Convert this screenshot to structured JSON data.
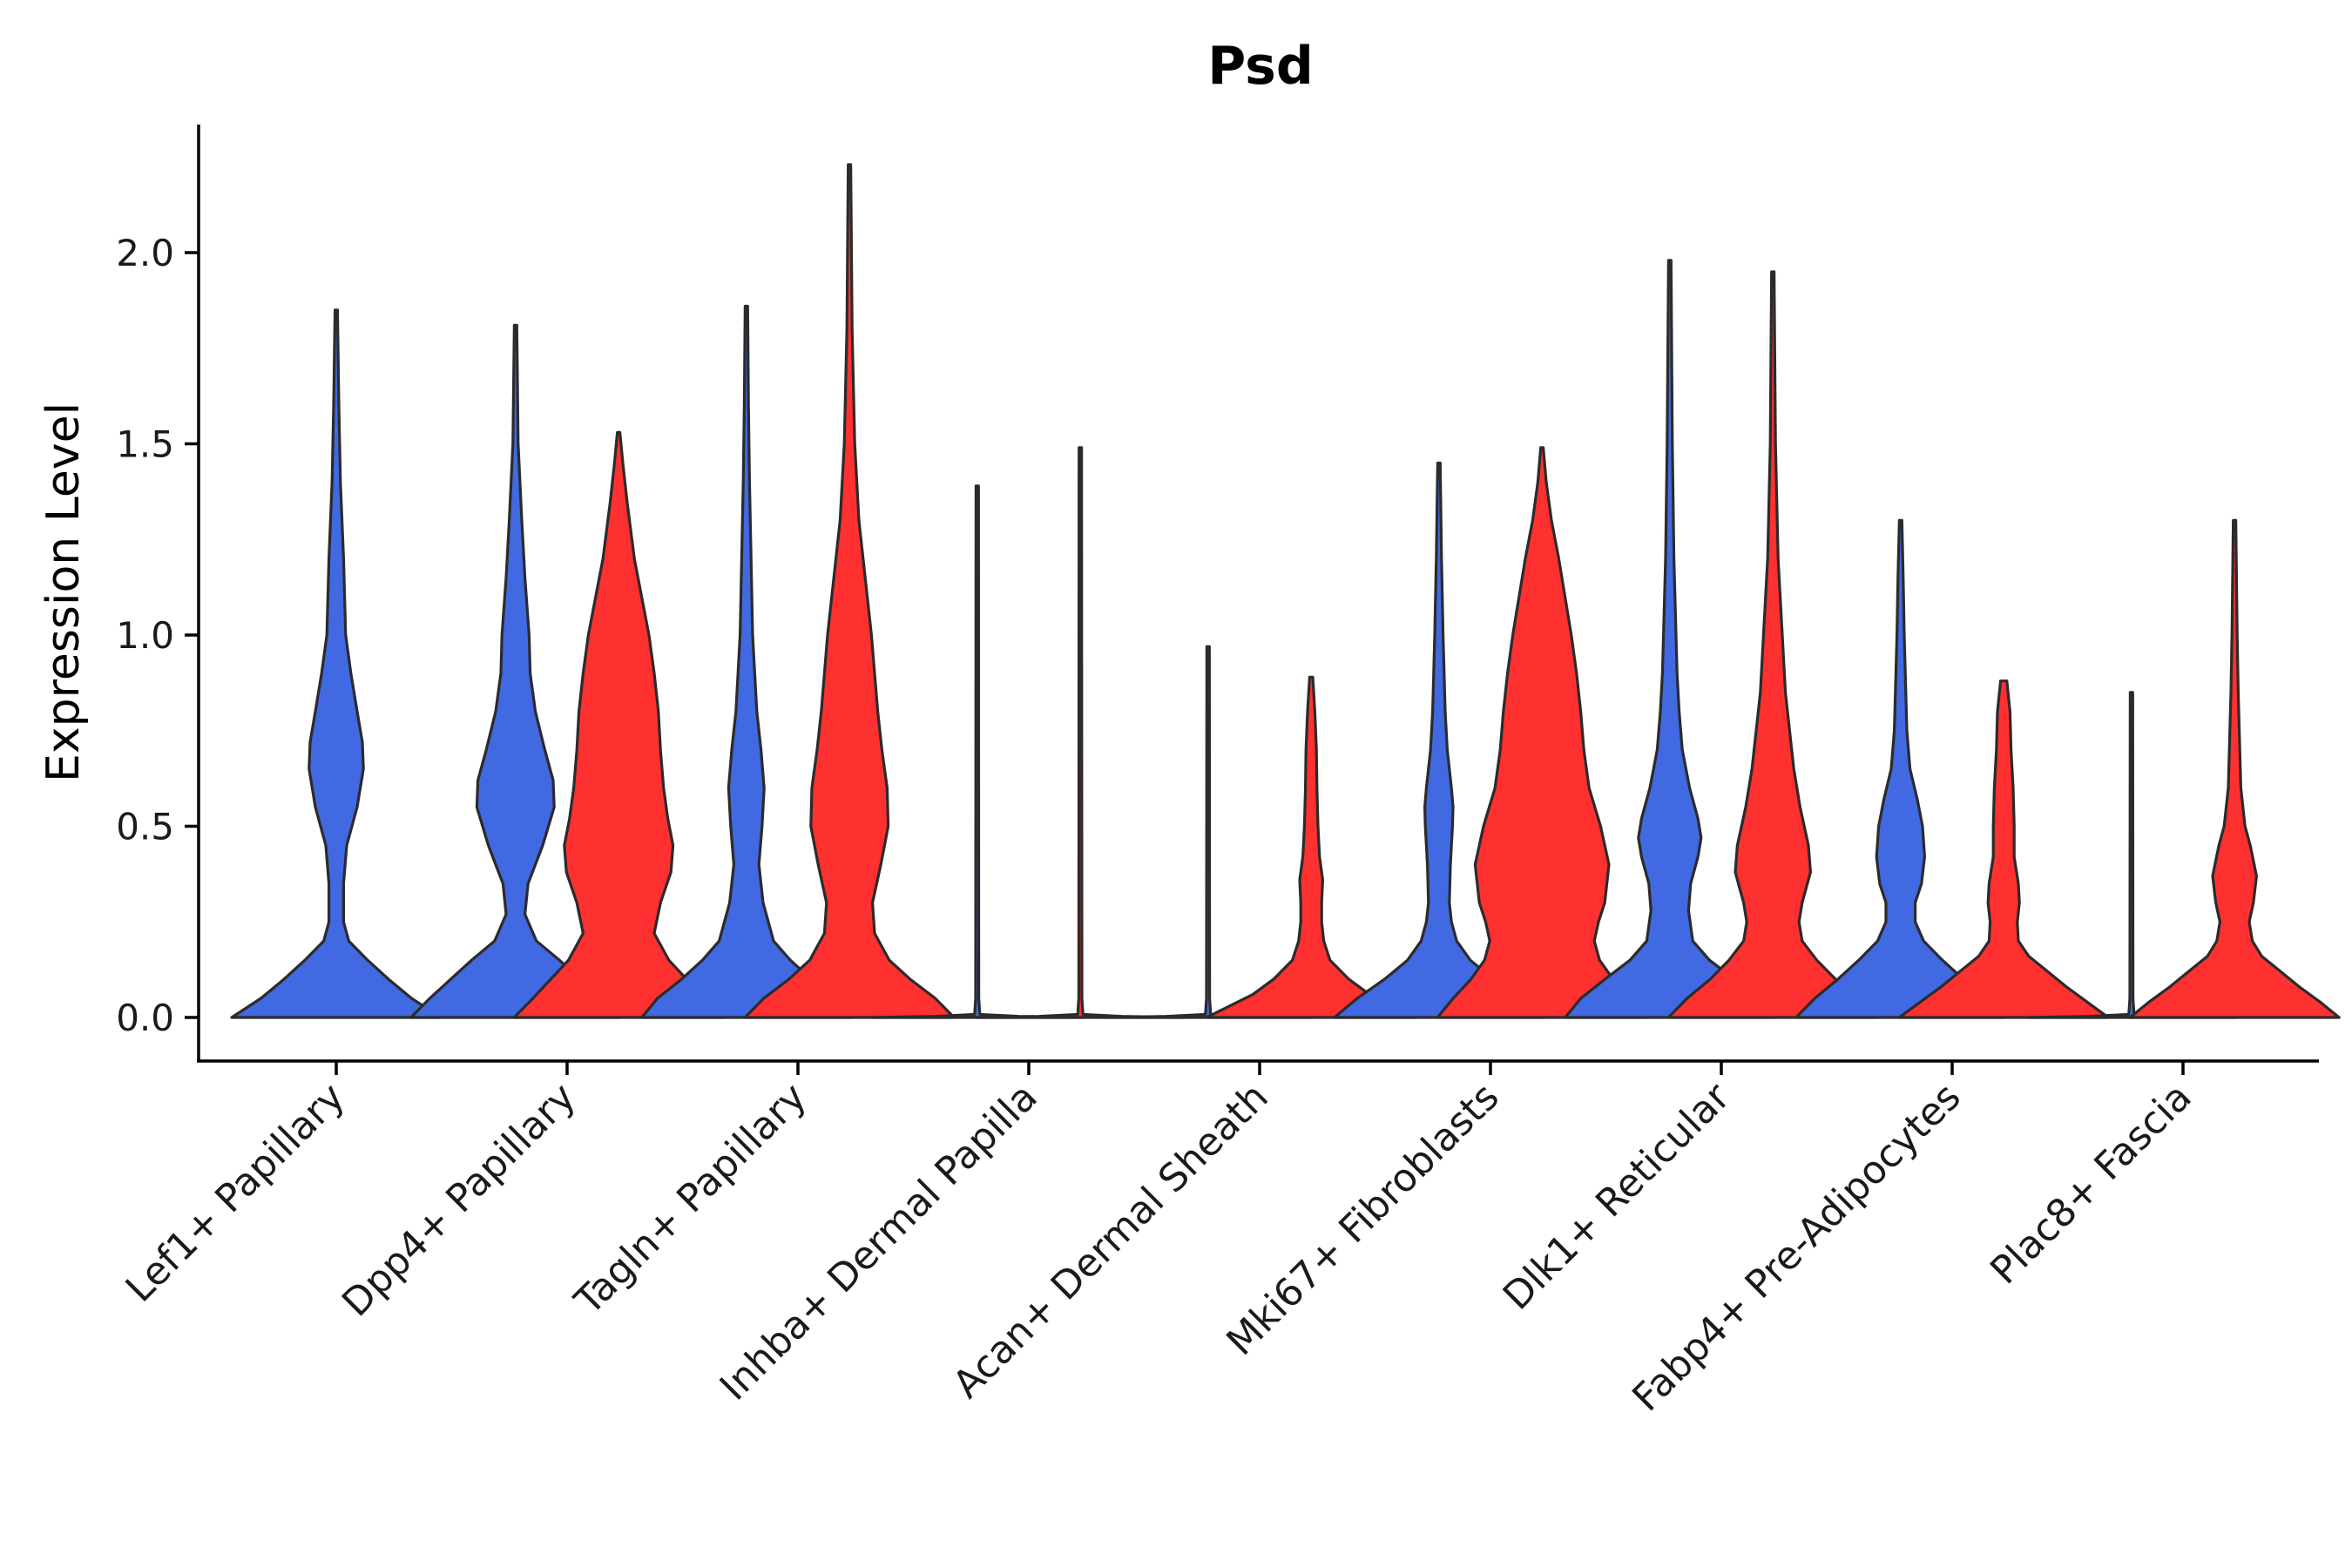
{
  "chart_data": {
    "type": "violin",
    "title": "Psd",
    "xlabel": "",
    "ylabel": "Expression Level",
    "ylim": [
      -0.11,
      2.33
    ],
    "yticks": [
      0.0,
      0.5,
      1.0,
      1.5,
      2.0
    ],
    "ytick_labels": [
      "0.0",
      "0.5",
      "1.0",
      "1.5",
      "2.0"
    ],
    "grid": false,
    "legend": "none",
    "colors": {
      "blue": "#4169E1",
      "red": "#FF3030"
    },
    "categories": [
      "Lef1+ Papillary",
      "Dpp4+ Papillary",
      "Tagln+ Papillary",
      "Inhba+ Dermal Papilla",
      "Acan+ Dermal Sheath",
      "Mki67+ Fibroblasts",
      "Dlk1+ Reticular",
      "Fabp4+ Pre-Adipocytes",
      "Plac8+ Fascia"
    ],
    "violins": [
      {
        "category": "Lef1+ Papillary",
        "offset": 0,
        "color": "blue",
        "max": 1.85,
        "profile": [
          [
            0.0,
            1.0
          ],
          [
            0.05,
            0.72
          ],
          [
            0.1,
            0.5
          ],
          [
            0.15,
            0.3
          ],
          [
            0.2,
            0.12
          ],
          [
            0.25,
            0.07
          ],
          [
            0.35,
            0.07
          ],
          [
            0.45,
            0.1
          ],
          [
            0.55,
            0.2
          ],
          [
            0.65,
            0.26
          ],
          [
            0.72,
            0.25
          ],
          [
            0.8,
            0.2
          ],
          [
            0.9,
            0.14
          ],
          [
            1.0,
            0.09
          ],
          [
            1.2,
            0.07
          ],
          [
            1.4,
            0.04
          ],
          [
            1.6,
            0.025
          ],
          [
            1.85,
            0.012
          ]
        ]
      },
      {
        "category": "Dpp4+ Papillary",
        "offset": -0.225,
        "color": "blue",
        "max": 1.81,
        "profile": [
          [
            0.0,
            1.0
          ],
          [
            0.05,
            0.82
          ],
          [
            0.1,
            0.62
          ],
          [
            0.15,
            0.42
          ],
          [
            0.2,
            0.2
          ],
          [
            0.27,
            0.09
          ],
          [
            0.35,
            0.12
          ],
          [
            0.45,
            0.26
          ],
          [
            0.55,
            0.37
          ],
          [
            0.62,
            0.36
          ],
          [
            0.7,
            0.28
          ],
          [
            0.8,
            0.19
          ],
          [
            0.9,
            0.14
          ],
          [
            1.0,
            0.13
          ],
          [
            1.15,
            0.09
          ],
          [
            1.3,
            0.06
          ],
          [
            1.5,
            0.025
          ],
          [
            1.81,
            0.012
          ]
        ]
      },
      {
        "category": "Dpp4+ Papillary",
        "offset": 0.225,
        "color": "red",
        "max": 1.53,
        "profile": [
          [
            0.0,
            1.0
          ],
          [
            0.05,
            0.82
          ],
          [
            0.1,
            0.65
          ],
          [
            0.15,
            0.48
          ],
          [
            0.22,
            0.34
          ],
          [
            0.3,
            0.4
          ],
          [
            0.38,
            0.5
          ],
          [
            0.45,
            0.52
          ],
          [
            0.52,
            0.47
          ],
          [
            0.6,
            0.43
          ],
          [
            0.7,
            0.4
          ],
          [
            0.8,
            0.38
          ],
          [
            0.9,
            0.34
          ],
          [
            1.0,
            0.29
          ],
          [
            1.1,
            0.22
          ],
          [
            1.2,
            0.15
          ],
          [
            1.35,
            0.08
          ],
          [
            1.45,
            0.04
          ],
          [
            1.53,
            0.012
          ]
        ]
      },
      {
        "category": "Tagln+ Papillary",
        "offset": -0.225,
        "color": "blue",
        "max": 1.86,
        "profile": [
          [
            0.0,
            1.0
          ],
          [
            0.05,
            0.85
          ],
          [
            0.1,
            0.62
          ],
          [
            0.15,
            0.42
          ],
          [
            0.2,
            0.26
          ],
          [
            0.3,
            0.16
          ],
          [
            0.4,
            0.12
          ],
          [
            0.5,
            0.15
          ],
          [
            0.6,
            0.17
          ],
          [
            0.7,
            0.14
          ],
          [
            0.8,
            0.1
          ],
          [
            0.9,
            0.08
          ],
          [
            1.0,
            0.06
          ],
          [
            1.2,
            0.045
          ],
          [
            1.4,
            0.03
          ],
          [
            1.6,
            0.02
          ],
          [
            1.86,
            0.012
          ]
        ]
      },
      {
        "category": "Tagln+ Papillary",
        "offset": 0.225,
        "color": "red",
        "max": 2.23,
        "profile": [
          [
            0.0,
            1.0
          ],
          [
            0.05,
            0.82
          ],
          [
            0.1,
            0.58
          ],
          [
            0.15,
            0.38
          ],
          [
            0.22,
            0.24
          ],
          [
            0.3,
            0.22
          ],
          [
            0.4,
            0.3
          ],
          [
            0.5,
            0.37
          ],
          [
            0.6,
            0.36
          ],
          [
            0.7,
            0.31
          ],
          [
            0.8,
            0.27
          ],
          [
            0.9,
            0.24
          ],
          [
            1.0,
            0.21
          ],
          [
            1.1,
            0.17
          ],
          [
            1.2,
            0.13
          ],
          [
            1.3,
            0.09
          ],
          [
            1.5,
            0.05
          ],
          [
            1.8,
            0.025
          ],
          [
            2.23,
            0.012
          ]
        ]
      },
      {
        "category": "Inhba+ Dermal Papilla",
        "offset": -0.225,
        "color": "blue",
        "max": 1.39,
        "profile": [
          [
            0.0,
            1.0
          ],
          [
            0.003,
            0.4
          ],
          [
            0.008,
            0.025
          ],
          [
            0.05,
            0.015
          ],
          [
            1.39,
            0.012
          ]
        ]
      },
      {
        "category": "Inhba+ Dermal Papilla",
        "offset": 0.225,
        "color": "red",
        "max": 1.49,
        "profile": [
          [
            0.0,
            1.0
          ],
          [
            0.003,
            0.4
          ],
          [
            0.008,
            0.025
          ],
          [
            0.05,
            0.015
          ],
          [
            1.49,
            0.012
          ]
        ]
      },
      {
        "category": "Acan+ Dermal Sheath",
        "offset": -0.225,
        "color": "blue",
        "max": 0.97,
        "profile": [
          [
            0.0,
            1.0
          ],
          [
            0.003,
            0.4
          ],
          [
            0.008,
            0.025
          ],
          [
            0.05,
            0.015
          ],
          [
            0.97,
            0.012
          ]
        ]
      },
      {
        "category": "Acan+ Dermal Sheath",
        "offset": 0.225,
        "color": "red",
        "max": 0.89,
        "profile": [
          [
            0.0,
            1.0
          ],
          [
            0.03,
            0.78
          ],
          [
            0.06,
            0.56
          ],
          [
            0.1,
            0.36
          ],
          [
            0.15,
            0.18
          ],
          [
            0.2,
            0.12
          ],
          [
            0.25,
            0.1
          ],
          [
            0.3,
            0.1
          ],
          [
            0.36,
            0.11
          ],
          [
            0.42,
            0.08
          ],
          [
            0.5,
            0.065
          ],
          [
            0.6,
            0.055
          ],
          [
            0.7,
            0.05
          ],
          [
            0.8,
            0.035
          ],
          [
            0.89,
            0.015
          ]
        ]
      },
      {
        "category": "Mki67+ Fibroblasts",
        "offset": -0.225,
        "color": "blue",
        "max": 1.45,
        "profile": [
          [
            0.0,
            1.0
          ],
          [
            0.05,
            0.78
          ],
          [
            0.1,
            0.52
          ],
          [
            0.15,
            0.3
          ],
          [
            0.2,
            0.17
          ],
          [
            0.25,
            0.12
          ],
          [
            0.3,
            0.1
          ],
          [
            0.4,
            0.11
          ],
          [
            0.5,
            0.13
          ],
          [
            0.55,
            0.135
          ],
          [
            0.6,
            0.12
          ],
          [
            0.7,
            0.08
          ],
          [
            0.8,
            0.06
          ],
          [
            0.9,
            0.05
          ],
          [
            1.0,
            0.04
          ],
          [
            1.2,
            0.025
          ],
          [
            1.45,
            0.012
          ]
        ]
      },
      {
        "category": "Mki67+ Fibroblasts",
        "offset": 0.225,
        "color": "red",
        "max": 1.49,
        "profile": [
          [
            0.0,
            1.0
          ],
          [
            0.05,
            0.85
          ],
          [
            0.1,
            0.68
          ],
          [
            0.15,
            0.55
          ],
          [
            0.2,
            0.5
          ],
          [
            0.25,
            0.54
          ],
          [
            0.3,
            0.6
          ],
          [
            0.4,
            0.64
          ],
          [
            0.5,
            0.56
          ],
          [
            0.6,
            0.45
          ],
          [
            0.7,
            0.4
          ],
          [
            0.8,
            0.37
          ],
          [
            0.9,
            0.33
          ],
          [
            1.0,
            0.28
          ],
          [
            1.1,
            0.22
          ],
          [
            1.2,
            0.16
          ],
          [
            1.3,
            0.09
          ],
          [
            1.4,
            0.04
          ],
          [
            1.49,
            0.012
          ]
        ]
      },
      {
        "category": "Dlk1+ Reticular",
        "offset": -0.225,
        "color": "blue",
        "max": 1.98,
        "profile": [
          [
            0.0,
            1.0
          ],
          [
            0.05,
            0.85
          ],
          [
            0.1,
            0.62
          ],
          [
            0.15,
            0.38
          ],
          [
            0.2,
            0.22
          ],
          [
            0.28,
            0.18
          ],
          [
            0.35,
            0.2
          ],
          [
            0.42,
            0.27
          ],
          [
            0.47,
            0.3
          ],
          [
            0.52,
            0.27
          ],
          [
            0.6,
            0.19
          ],
          [
            0.7,
            0.12
          ],
          [
            0.8,
            0.09
          ],
          [
            0.9,
            0.07
          ],
          [
            1.0,
            0.06
          ],
          [
            1.2,
            0.04
          ],
          [
            1.5,
            0.025
          ],
          [
            1.98,
            0.012
          ]
        ]
      },
      {
        "category": "Dlk1+ Reticular",
        "offset": 0.225,
        "color": "red",
        "max": 1.95,
        "profile": [
          [
            0.0,
            1.0
          ],
          [
            0.05,
            0.82
          ],
          [
            0.1,
            0.6
          ],
          [
            0.15,
            0.42
          ],
          [
            0.2,
            0.28
          ],
          [
            0.25,
            0.25
          ],
          [
            0.3,
            0.28
          ],
          [
            0.38,
            0.36
          ],
          [
            0.45,
            0.34
          ],
          [
            0.55,
            0.26
          ],
          [
            0.65,
            0.2
          ],
          [
            0.75,
            0.16
          ],
          [
            0.85,
            0.12
          ],
          [
            1.0,
            0.09
          ],
          [
            1.2,
            0.05
          ],
          [
            1.5,
            0.025
          ],
          [
            1.95,
            0.012
          ]
        ]
      },
      {
        "category": "Fabp4+ Pre-Adipocytes",
        "offset": -0.225,
        "color": "blue",
        "max": 1.3,
        "profile": [
          [
            0.0,
            1.0
          ],
          [
            0.05,
            0.82
          ],
          [
            0.1,
            0.6
          ],
          [
            0.15,
            0.4
          ],
          [
            0.2,
            0.22
          ],
          [
            0.25,
            0.14
          ],
          [
            0.3,
            0.14
          ],
          [
            0.35,
            0.2
          ],
          [
            0.42,
            0.23
          ],
          [
            0.5,
            0.21
          ],
          [
            0.57,
            0.16
          ],
          [
            0.65,
            0.09
          ],
          [
            0.75,
            0.06
          ],
          [
            0.9,
            0.045
          ],
          [
            1.0,
            0.035
          ],
          [
            1.15,
            0.025
          ],
          [
            1.3,
            0.012
          ]
        ]
      },
      {
        "category": "Fabp4+ Pre-Adipocytes",
        "offset": 0.225,
        "color": "red",
        "max": 0.88,
        "profile": [
          [
            0.0,
            1.0
          ],
          [
            0.04,
            0.8
          ],
          [
            0.08,
            0.6
          ],
          [
            0.12,
            0.42
          ],
          [
            0.16,
            0.24
          ],
          [
            0.2,
            0.14
          ],
          [
            0.25,
            0.13
          ],
          [
            0.3,
            0.15
          ],
          [
            0.35,
            0.14
          ],
          [
            0.42,
            0.1
          ],
          [
            0.5,
            0.1
          ],
          [
            0.6,
            0.09
          ],
          [
            0.7,
            0.07
          ],
          [
            0.8,
            0.06
          ],
          [
            0.88,
            0.03
          ]
        ]
      },
      {
        "category": "Plac8+ Fascia",
        "offset": -0.225,
        "color": "blue",
        "max": 0.85,
        "profile": [
          [
            0.0,
            1.0
          ],
          [
            0.003,
            0.4
          ],
          [
            0.008,
            0.025
          ],
          [
            0.05,
            0.015
          ],
          [
            0.85,
            0.012
          ]
        ]
      },
      {
        "category": "Plac8+ Fascia",
        "offset": 0.225,
        "color": "red",
        "max": 1.3,
        "profile": [
          [
            0.0,
            1.0
          ],
          [
            0.04,
            0.82
          ],
          [
            0.08,
            0.62
          ],
          [
            0.12,
            0.44
          ],
          [
            0.16,
            0.26
          ],
          [
            0.2,
            0.17
          ],
          [
            0.25,
            0.14
          ],
          [
            0.3,
            0.18
          ],
          [
            0.37,
            0.21
          ],
          [
            0.45,
            0.15
          ],
          [
            0.5,
            0.1
          ],
          [
            0.6,
            0.06
          ],
          [
            0.7,
            0.05
          ],
          [
            0.85,
            0.035
          ],
          [
            1.0,
            0.025
          ],
          [
            1.3,
            0.012
          ]
        ]
      }
    ]
  }
}
